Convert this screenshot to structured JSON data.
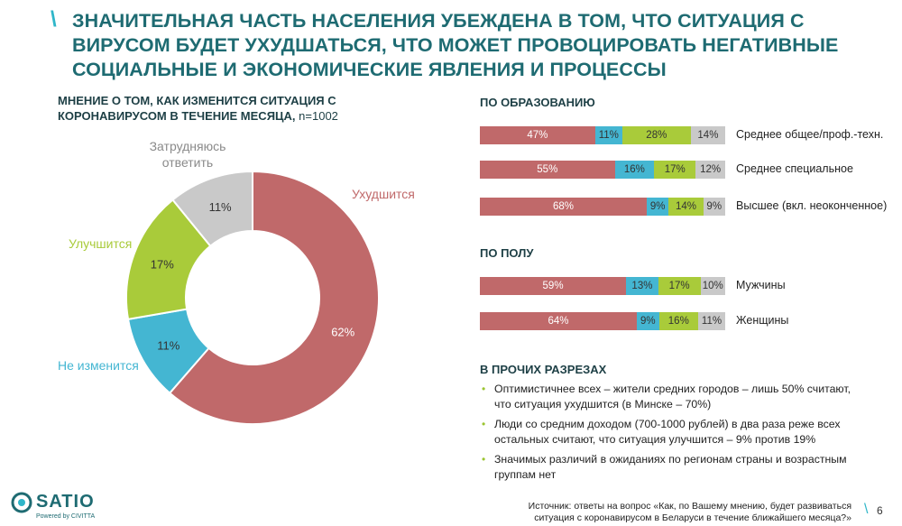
{
  "header": {
    "title": "ЗНАЧИТЕЛЬНАЯ ЧАСТЬ НАСЕЛЕНИЯ УБЕЖДЕНА В ТОМ, ЧТО СИТУАЦИЯ С ВИРУСОМ БУДЕТ УХУДШАТЬСЯ, ЧТО МОЖЕТ ПРОВОЦИРОВАТЬ НЕГАТИВНЫЕ СОЦИАЛЬНЫЕ И ЭКОНОМИЧЕСКИЕ ЯВЛЕНИЯ И ПРОЦЕССЫ",
    "slash": "\\"
  },
  "colors": {
    "worse": "#c0696a",
    "same": "#44b6d2",
    "better": "#a9cb3a",
    "unsure": "#c9c9c9",
    "title": "#1e6b72",
    "accent": "#2fb6c9"
  },
  "chart_data": [
    {
      "type": "pie",
      "title": "МНЕНИЕ О ТОМ, КАК ИЗМЕНИТСЯ СИТУАЦИЯ С КОРОНАВИРУСОМ В ТЕЧЕНИЕ МЕСЯЦА,",
      "sample": "n=1002",
      "categories": [
        "Ухудшится",
        "Не изменится",
        "Улучшится",
        "Затрудняюсь ответить"
      ],
      "values": [
        62,
        11,
        17,
        11
      ],
      "value_labels": [
        "62%",
        "11%",
        "17%",
        "11%"
      ]
    },
    {
      "type": "bar",
      "orientation": "horizontal-stacked",
      "title": "ПО ОБРАЗОВАНИЮ",
      "categories": [
        "Среднее общее/проф.-техн.",
        "Среднее специальное",
        "Высшее (вкл. неоконченное)"
      ],
      "series": [
        {
          "values": [
            47,
            55,
            68
          ],
          "labels": [
            "47%",
            "55%",
            "68%"
          ]
        },
        {
          "values": [
            11,
            16,
            9
          ],
          "labels": [
            "11%",
            "16%",
            "9%"
          ]
        },
        {
          "values": [
            28,
            17,
            14
          ],
          "labels": [
            "28%",
            "17%",
            "14%"
          ]
        },
        {
          "values": [
            14,
            12,
            9
          ],
          "labels": [
            "14%",
            "12%",
            "9%"
          ]
        }
      ]
    },
    {
      "type": "bar",
      "orientation": "horizontal-stacked",
      "title": "ПО ПОЛУ",
      "categories": [
        "Мужчины",
        "Женщины"
      ],
      "series": [
        {
          "values": [
            59,
            64
          ],
          "labels": [
            "59%",
            "64%"
          ]
        },
        {
          "values": [
            13,
            9
          ],
          "labels": [
            "13%",
            "9%"
          ]
        },
        {
          "values": [
            17,
            16
          ],
          "labels": [
            "17%",
            "16%"
          ]
        },
        {
          "values": [
            10,
            11
          ],
          "labels": [
            "10%",
            "11%"
          ]
        }
      ]
    }
  ],
  "donut_labels": {
    "worse": "Ухудшится",
    "same": "Не изменится",
    "better": "Улучшится",
    "unsure_line1": "Затрудняюсь",
    "unsure_line2": "ответить"
  },
  "other": {
    "heading": "В ПРОЧИХ РАЗРЕЗАХ",
    "bullets": [
      "Оптимистичнее всех – жители средних городов – лишь 50% считают, что ситуация ухудшится (в Минске – 70%)",
      "Люди со средним доходом (700-1000 рублей) в два раза реже всех остальных считают, что ситуация улучшится – 9% против 19%",
      "Значимых различий в ожиданиях по регионам страны и возрастным группам нет"
    ],
    "bullet_symbol": "•"
  },
  "footer": {
    "source": "Источник: ответы на вопрос «Как, по Вашему мнению, будет развиваться ситуация с коронавирусом в Беларуси в течение ближайшего месяца?»",
    "logo": "SATIO",
    "logo_sub": "Powered by CIVITTA",
    "page_number": "6",
    "page_slash": "\\"
  }
}
